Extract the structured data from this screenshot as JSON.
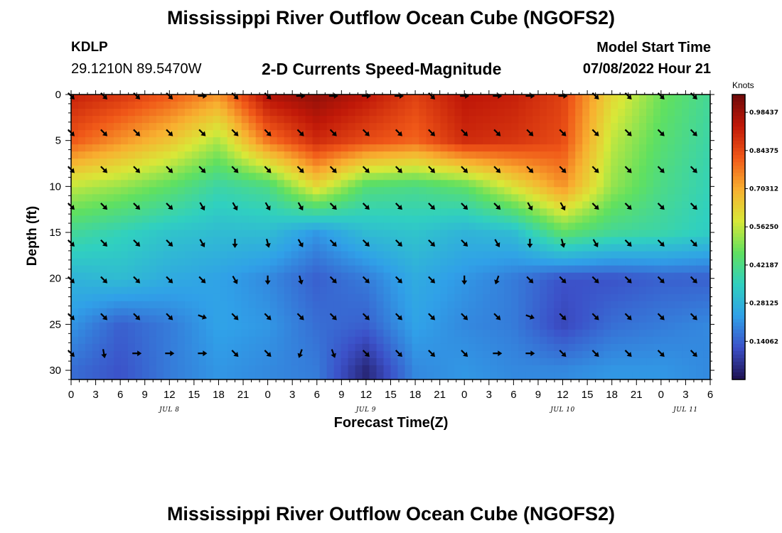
{
  "chart_data": {
    "type": "heatmap",
    "title": "Mississippi River Outflow Ocean Cube (NGOFS2)",
    "subtitle": "2-D Currents Speed-Magnitude",
    "station": {
      "id": "KDLP",
      "coords": "29.1210N  89.5470W"
    },
    "model_start": {
      "label": "Model Start Time",
      "value": "07/08/2022 Hour 21"
    },
    "xlabel": "Forecast Time(Z)",
    "ylabel": "Depth (ft)",
    "xlim": [
      0,
      78
    ],
    "ylim": [
      0,
      31
    ],
    "x_ticks": [
      {
        "h": 0,
        "label": "0"
      },
      {
        "h": 3,
        "label": "3"
      },
      {
        "h": 6,
        "label": "6"
      },
      {
        "h": 9,
        "label": "9"
      },
      {
        "h": 12,
        "label": "12"
      },
      {
        "h": 15,
        "label": "15"
      },
      {
        "h": 18,
        "label": "18"
      },
      {
        "h": 21,
        "label": "21"
      },
      {
        "h": 24,
        "label": "0"
      },
      {
        "h": 27,
        "label": "3"
      },
      {
        "h": 30,
        "label": "6"
      },
      {
        "h": 33,
        "label": "9"
      },
      {
        "h": 36,
        "label": "12"
      },
      {
        "h": 39,
        "label": "15"
      },
      {
        "h": 42,
        "label": "18"
      },
      {
        "h": 45,
        "label": "21"
      },
      {
        "h": 48,
        "label": "0"
      },
      {
        "h": 51,
        "label": "3"
      },
      {
        "h": 54,
        "label": "6"
      },
      {
        "h": 57,
        "label": "9"
      },
      {
        "h": 60,
        "label": "12"
      },
      {
        "h": 63,
        "label": "15"
      },
      {
        "h": 66,
        "label": "18"
      },
      {
        "h": 69,
        "label": "21"
      },
      {
        "h": 72,
        "label": "0"
      },
      {
        "h": 75,
        "label": "3"
      },
      {
        "h": 78,
        "label": "6"
      }
    ],
    "date_labels": [
      {
        "h": 12,
        "label": "JUL 8"
      },
      {
        "h": 36,
        "label": "JUL 9"
      },
      {
        "h": 60,
        "label": "JUL 10"
      },
      {
        "h": 75,
        "label": "JUL 11"
      }
    ],
    "y_ticks": [
      0,
      5,
      10,
      15,
      20,
      25,
      30
    ],
    "colorbar": {
      "unit": "Knots",
      "range": [
        0.0,
        1.05
      ],
      "tick_values": [
        0.14062,
        0.28125,
        0.42187,
        0.5625,
        0.70312,
        0.84375,
        0.98437
      ],
      "tick_labels": [
        "0.14062",
        "0.28125",
        "0.42187",
        "0.56250",
        "0.70312",
        "0.84375",
        "0.98437"
      ],
      "colors": [
        "#1e1250",
        "#3c50c8",
        "#30a0e8",
        "#30d0c0",
        "#60e060",
        "#d8e838",
        "#f8b030",
        "#f05818",
        "#c01808",
        "#6e0a0a"
      ]
    },
    "speed_hours": [
      0,
      6,
      12,
      18,
      24,
      30,
      36,
      42,
      48,
      54,
      60,
      66,
      72,
      78
    ],
    "speed_depths": [
      0,
      5,
      10,
      15,
      20,
      25,
      30
    ],
    "speed_knots": [
      [
        0.92,
        0.88,
        0.82,
        0.74,
        0.96,
        1.0,
        0.94,
        0.86,
        0.94,
        0.92,
        0.86,
        0.62,
        0.48,
        0.4
      ],
      [
        0.82,
        0.74,
        0.66,
        0.54,
        0.78,
        0.9,
        0.84,
        0.8,
        0.9,
        0.88,
        0.84,
        0.56,
        0.45,
        0.38
      ],
      [
        0.56,
        0.52,
        0.46,
        0.38,
        0.42,
        0.62,
        0.44,
        0.42,
        0.46,
        0.6,
        0.74,
        0.52,
        0.42,
        0.36
      ],
      [
        0.4,
        0.36,
        0.32,
        0.3,
        0.3,
        0.22,
        0.3,
        0.32,
        0.28,
        0.3,
        0.46,
        0.4,
        0.38,
        0.34
      ],
      [
        0.28,
        0.3,
        0.26,
        0.24,
        0.2,
        0.14,
        0.18,
        0.26,
        0.22,
        0.18,
        0.12,
        0.12,
        0.14,
        0.14
      ],
      [
        0.22,
        0.14,
        0.18,
        0.24,
        0.22,
        0.16,
        0.14,
        0.24,
        0.2,
        0.18,
        0.1,
        0.16,
        0.18,
        0.2
      ],
      [
        0.16,
        0.12,
        0.18,
        0.22,
        0.2,
        0.18,
        0.04,
        0.2,
        0.22,
        0.2,
        0.2,
        0.22,
        0.22,
        0.2
      ]
    ],
    "vector_hours": [
      0,
      4,
      8,
      12,
      16,
      20,
      24,
      28,
      32,
      36,
      40,
      44,
      48,
      52,
      56,
      60,
      64,
      68,
      72,
      76
    ],
    "vector_depths": [
      0,
      4,
      8,
      12,
      16,
      20,
      24,
      28
    ],
    "vector_directions_deg": [
      [
        135,
        135,
        135,
        135,
        90,
        135,
        135,
        90,
        90,
        90,
        90,
        135,
        90,
        90,
        90,
        90,
        135,
        135,
        135,
        135
      ],
      [
        135,
        135,
        135,
        135,
        135,
        135,
        135,
        135,
        135,
        135,
        135,
        135,
        135,
        135,
        135,
        135,
        135,
        135,
        135,
        135
      ],
      [
        135,
        135,
        135,
        135,
        135,
        135,
        135,
        135,
        135,
        135,
        135,
        135,
        135,
        135,
        135,
        135,
        135,
        135,
        135,
        135
      ],
      [
        135,
        135,
        135,
        135,
        150,
        150,
        150,
        150,
        135,
        135,
        135,
        135,
        135,
        135,
        150,
        150,
        135,
        135,
        135,
        135
      ],
      [
        135,
        135,
        135,
        135,
        150,
        180,
        165,
        150,
        135,
        135,
        135,
        135,
        135,
        150,
        180,
        165,
        150,
        135,
        135,
        135
      ],
      [
        135,
        135,
        135,
        135,
        135,
        150,
        180,
        165,
        135,
        135,
        135,
        135,
        180,
        200,
        135,
        135,
        135,
        135,
        135,
        135
      ],
      [
        135,
        135,
        135,
        135,
        110,
        135,
        135,
        135,
        135,
        135,
        135,
        135,
        135,
        135,
        110,
        135,
        135,
        135,
        135,
        135
      ],
      [
        135,
        170,
        90,
        90,
        90,
        135,
        135,
        200,
        160,
        135,
        135,
        135,
        135,
        90,
        90,
        135,
        135,
        135,
        135,
        135
      ]
    ]
  },
  "page": {
    "bottom_title": "Mississippi River Outflow Ocean Cube (NGOFS2)"
  }
}
